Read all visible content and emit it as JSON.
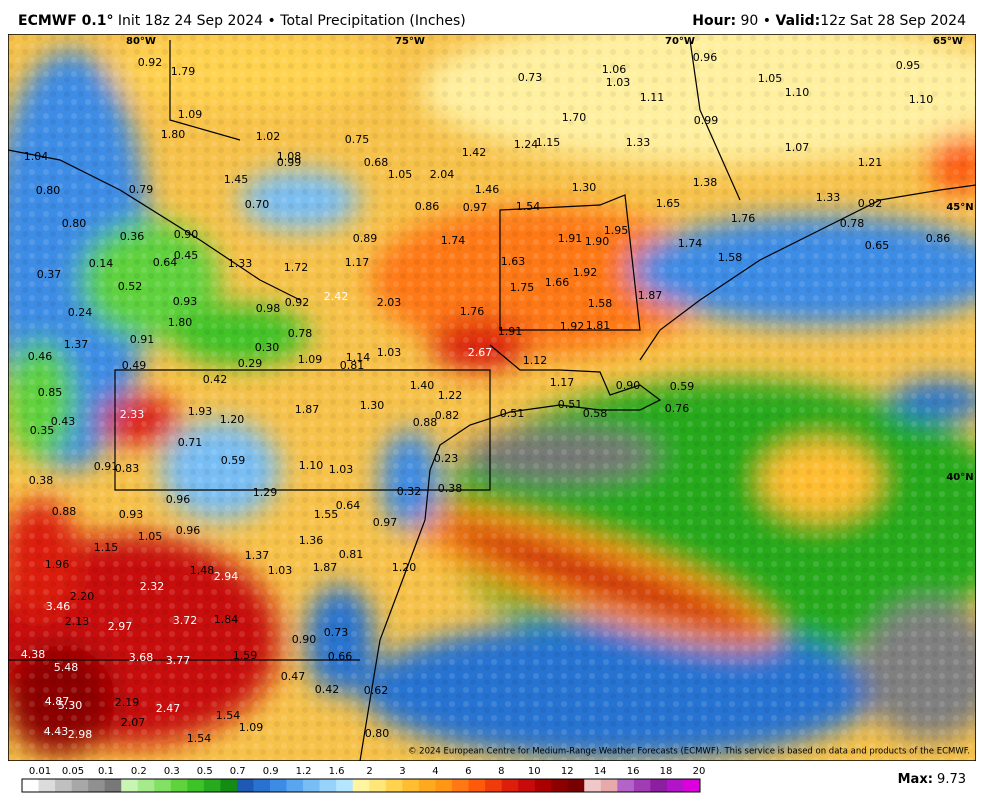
{
  "header": {
    "model": "ECMWF 0.1°",
    "init": "Init 18z 24 Sep 2024",
    "separator": "•",
    "field": "Total Precipitation (Inches)",
    "hour_label": "Hour:",
    "hour": 90,
    "valid_label": "Valid:",
    "valid": "12z Sat 28 Sep 2024"
  },
  "map": {
    "longitude_labels": [
      "80°W",
      "75°W",
      "70°W",
      "65°W"
    ],
    "latitude_labels": [
      "45°N",
      "40°N"
    ],
    "precip_labels": [
      "0.92",
      "1.79",
      "1.09",
      "1.80",
      "1.02",
      "0.75",
      "1.08",
      "0.99",
      "0.68",
      "1.04",
      "1.05",
      "2.04",
      "1.42",
      "1.24",
      "1.15",
      "0.73",
      "1.06",
      "1.03",
      "1.11",
      "0.96",
      "0.95",
      "1.05",
      "1.10",
      "1.10",
      "1.70",
      "1.33",
      "0.99",
      "1.07",
      "1.21",
      "1.38",
      "1.30",
      "1.46",
      "1.45",
      "0.79",
      "0.80",
      "0.70",
      "0.86",
      "0.97",
      "1.54",
      "1.65",
      "1.33",
      "0.92",
      "0.80",
      "0.36",
      "0.90",
      "0.89",
      "1.74",
      "1.91",
      "1.90",
      "1.95",
      "1.74",
      "1.76",
      "0.78",
      "0.65",
      "0.86",
      "0.64",
      "0.45",
      "1.33",
      "1.72",
      "1.17",
      "1.63",
      "1.92",
      "1.58",
      "0.37",
      "0.14",
      "0.52",
      "2.42",
      "2.03",
      "1.75",
      "1.66",
      "1.58",
      "1.87",
      "0.93",
      "0.98",
      "0.92",
      "1.76",
      "0.24",
      "1.80",
      "0.78",
      "1.91",
      "1.92",
      "1.81",
      "1.37",
      "0.91",
      "0.30",
      "0.46",
      "2.67",
      "1.12",
      "0.49",
      "0.29",
      "1.09",
      "1.14",
      "0.81",
      "1.03",
      "0.42",
      "1.40",
      "1.17",
      "0.85",
      "1.22",
      "0.90",
      "0.59",
      "2.33",
      "1.93",
      "1.20",
      "1.87",
      "1.30",
      "0.82",
      "0.88",
      "0.51",
      "0.51",
      "0.58",
      "0.76",
      "0.43",
      "0.35",
      "0.71",
      "0.23",
      "0.59",
      "1.10",
      "1.03",
      "0.91",
      "0.83",
      "0.38",
      "0.38",
      "0.32",
      "0.96",
      "1.29",
      "0.64",
      "0.88",
      "0.93",
      "1.55",
      "0.97",
      "1.05",
      "0.96",
      "1.36",
      "1.15",
      "0.81",
      "1.37",
      "1.20",
      "1.96",
      "1.48",
      "2.94",
      "1.03",
      "1.87",
      "2.32",
      "2.20",
      "3.46",
      "2.13",
      "3.72",
      "1.84",
      "2.97",
      "0.90",
      "0.73",
      "4.38",
      "3.68",
      "3.77",
      "1.59",
      "0.66",
      "5.48",
      "0.47",
      "0.42",
      "0.62",
      "4.87",
      "5.30",
      "2.19",
      "2.47",
      "2.07",
      "1.54",
      "1.09",
      "4.43",
      "2.98",
      "1.54",
      "0.80"
    ],
    "copyright": "© 2024 European Centre for Medium-Range Weather Forecasts (ECMWF). This service is based on data and products of the ECMWF."
  },
  "legend": {
    "ticks": [
      0.01,
      0.05,
      0.1,
      0.2,
      0.3,
      0.5,
      0.7,
      0.9,
      1.2,
      1.6,
      2,
      3,
      4,
      6,
      8,
      10,
      12,
      14,
      16,
      18,
      20
    ],
    "colors": [
      "#ffffff",
      "#dcdcdc",
      "#c0c0c0",
      "#a8a8a8",
      "#909090",
      "#787878",
      "#c8f5b4",
      "#a5eb8c",
      "#82e164",
      "#5fd23c",
      "#3cc328",
      "#28aa1e",
      "#148c14",
      "#1e5ab4",
      "#2873d2",
      "#3c8ce6",
      "#5aa5f0",
      "#78bef5",
      "#96d2fa",
      "#b4e6ff",
      "#fff5a0",
      "#ffe678",
      "#ffd250",
      "#ffbe32",
      "#ffaa1e",
      "#ff9614",
      "#ff7814",
      "#ff5a0a",
      "#f03c0a",
      "#dc1e0a",
      "#c80a0a",
      "#aa0000",
      "#8c0000",
      "#780000",
      "#f0c8c8",
      "#e6aaaa",
      "#b464c8",
      "#a03cb4",
      "#8c1ea0",
      "#b414c8",
      "#dc00dc"
    ],
    "max_label": "Max:",
    "max": 9.73
  }
}
